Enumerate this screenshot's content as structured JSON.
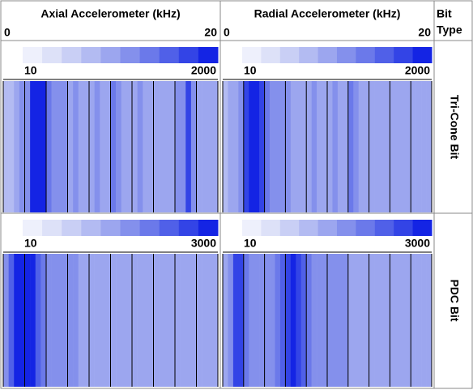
{
  "chart_data": {
    "type": "heatmap",
    "header": [
      "Bit",
      "Type"
    ],
    "color_scale": "log",
    "palette": [
      "#eef0fc",
      "#dde1f8",
      "#c9cff5",
      "#b3bbf2",
      "#9ca6ef",
      "#8490ec",
      "#6b79ea",
      "#5060e8",
      "#3344e6",
      "#1424e4"
    ],
    "columns": [
      {
        "title": "Axial Accelerometer (kHz)",
        "xlim": [
          0,
          20
        ],
        "xticks": [
          0,
          2,
          4,
          6,
          8,
          10,
          12,
          14,
          16,
          18,
          20
        ]
      },
      {
        "title": "Radial Accelerometer (kHz)",
        "xlim": [
          0,
          20
        ],
        "xticks": [
          0,
          2,
          4,
          6,
          8,
          10,
          12,
          14,
          16,
          18,
          20
        ]
      }
    ],
    "rows": [
      {
        "label": "Tri-Cone Bit",
        "color_range": [
          10,
          2000
        ]
      },
      {
        "label": "PDC Bit",
        "color_range": [
          10,
          3000
        ]
      }
    ],
    "panels": [
      [
        {
          "values": [
            60,
            80,
            100,
            150,
            200,
            1200,
            2000,
            1500,
            300,
            200,
            150,
            150,
            120,
            150,
            120,
            130,
            120,
            150,
            120,
            130,
            400,
            150,
            120,
            130,
            120,
            150,
            120,
            130,
            120,
            120,
            130,
            120,
            150,
            200,
            800,
            200,
            120,
            100,
            100,
            90
          ]
        },
        {
          "values": [
            80,
            100,
            120,
            150,
            900,
            2000,
            2000,
            1000,
            300,
            200,
            150,
            150,
            150,
            130,
            130,
            130,
            130,
            150,
            130,
            130,
            130,
            150,
            130,
            130,
            300,
            150,
            130,
            130,
            130,
            120,
            130,
            130,
            130,
            130,
            130,
            120,
            120,
            110,
            100,
            90
          ]
        }
      ],
      [
        {
          "values": [
            200,
            800,
            2000,
            3000,
            2500,
            1800,
            900,
            400,
            300,
            250,
            200,
            200,
            180,
            180,
            170,
            160,
            160,
            150,
            150,
            150,
            150,
            140,
            140,
            140,
            140,
            130,
            130,
            130,
            130,
            130,
            120,
            120,
            120,
            120,
            120,
            110,
            110,
            110,
            100,
            100
          ]
        },
        {
          "values": [
            150,
            300,
            1000,
            1200,
            400,
            300,
            250,
            250,
            300,
            300,
            400,
            600,
            1500,
            1800,
            1200,
            900,
            400,
            300,
            250,
            200,
            200,
            200,
            180,
            180,
            170,
            160,
            160,
            150,
            150,
            150,
            150,
            140,
            140,
            130,
            130,
            130,
            120,
            120,
            110,
            100
          ]
        }
      ]
    ]
  }
}
